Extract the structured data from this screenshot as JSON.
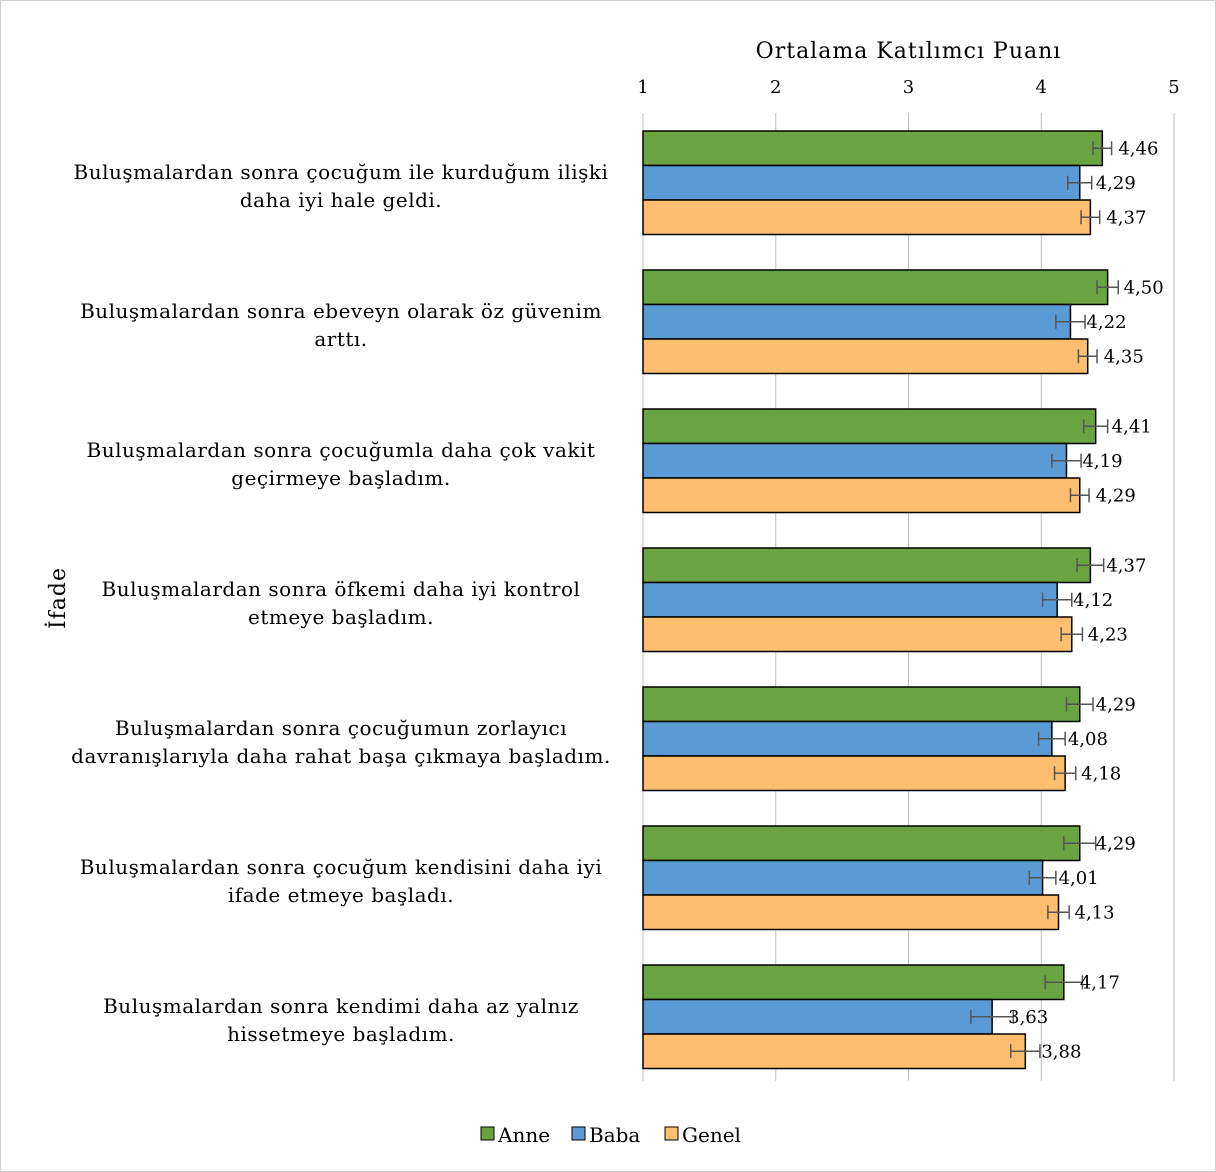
{
  "chart_data": {
    "type": "bar",
    "orientation": "horizontal",
    "title": "",
    "xlabel": "Ortalama Katılımcı Puanı",
    "ylabel": "İfade",
    "xlim": [
      1,
      5
    ],
    "xticks": [
      "1",
      "2",
      "3",
      "4",
      "5"
    ],
    "grid": true,
    "legend": "bottom",
    "categories": [
      [
        "Buluşmalardan sonra çocuğum ile kurduğum ilişki",
        "daha iyi hale geldi."
      ],
      [
        "Buluşmalardan sonra ebeveyn olarak öz güvenim",
        "arttı."
      ],
      [
        "Buluşmalardan sonra çocuğumla daha çok vakit",
        "geçirmeye başladım."
      ],
      [
        "Buluşmalardan sonra öfkemi daha iyi kontrol",
        "etmeye başladım."
      ],
      [
        "Buluşmalardan sonra çocuğumun zorlayıcı",
        "davranışlarıyla daha rahat başa çıkmaya başladım."
      ],
      [
        "Buluşmalardan sonra çocuğum kendisini daha iyi",
        "ifade etmeye başladı."
      ],
      [
        "Buluşmalardan sonra kendimi daha az yalnız",
        "hissetmeye başladım."
      ]
    ],
    "series": [
      {
        "name": "Anne",
        "color": "#6aa341",
        "values": [
          4.46,
          4.5,
          4.41,
          4.37,
          4.29,
          4.29,
          4.17
        ],
        "labels": [
          "4,46",
          "4,50",
          "4,41",
          "4,37",
          "4,29",
          "4,29",
          "4,17"
        ],
        "error": [
          0.07,
          0.08,
          0.09,
          0.1,
          0.1,
          0.12,
          0.14
        ]
      },
      {
        "name": "Baba",
        "color": "#5b9bd5",
        "values": [
          4.29,
          4.22,
          4.19,
          4.12,
          4.08,
          4.01,
          3.63
        ],
        "labels": [
          "4,29",
          "4,22",
          "4,19",
          "4,12",
          "4,08",
          "4,01",
          "3,63"
        ],
        "error": [
          0.09,
          0.11,
          0.11,
          0.11,
          0.1,
          0.1,
          0.16
        ]
      },
      {
        "name": "Genel",
        "color": "#fdbf6f",
        "values": [
          4.37,
          4.35,
          4.29,
          4.23,
          4.18,
          4.13,
          3.88
        ],
        "labels": [
          "4,37",
          "4,35",
          "4,29",
          "4,23",
          "4,18",
          "4,13",
          "3,88"
        ],
        "error": [
          0.07,
          0.07,
          0.07,
          0.08,
          0.08,
          0.08,
          0.11
        ]
      }
    ]
  }
}
